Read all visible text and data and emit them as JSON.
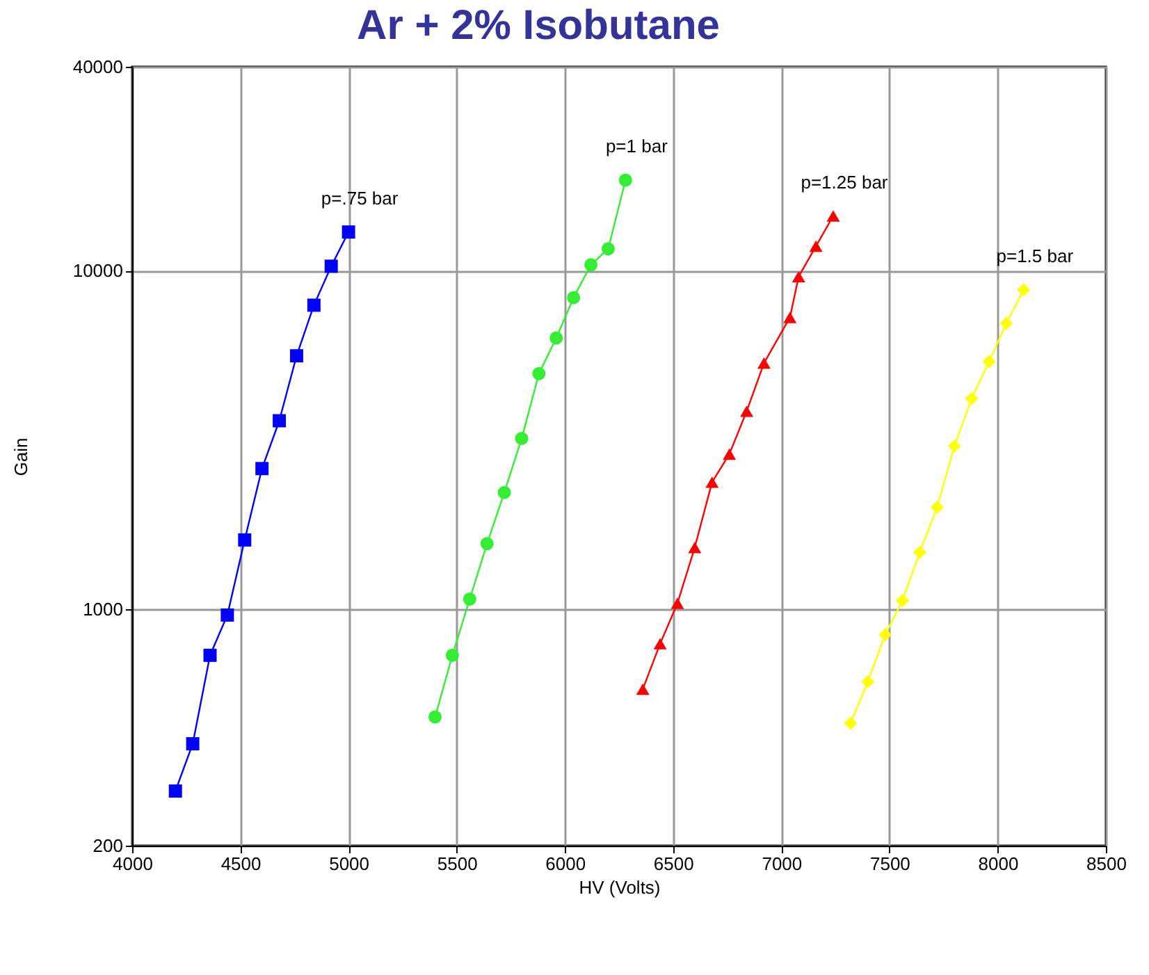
{
  "chart_data": {
    "type": "line",
    "title": "Ar + 2% Isobutane",
    "xlabel": "HV (Volts)",
    "ylabel": "Gain",
    "log": "y",
    "grid": true,
    "xlim": [
      4000,
      8500
    ],
    "xticks": [
      4000,
      4500,
      5000,
      5500,
      6000,
      6500,
      7000,
      7500,
      8000,
      8500
    ],
    "ylim": [
      200,
      40000
    ],
    "yticks": [
      200,
      1000,
      10000,
      40000
    ],
    "series": [
      {
        "name": "p=.75 bar",
        "color": "#0000ff",
        "marker": "square",
        "x": [
          4200,
          4280,
          4360,
          4440,
          4520,
          4600,
          4680,
          4760,
          4840,
          4920,
          5000
        ],
        "values": [
          290,
          400,
          730,
          960,
          1600,
          2600,
          3600,
          5600,
          7900,
          10300,
          13000
        ]
      },
      {
        "name": "p=1 bar",
        "color": "#33ee33",
        "marker": "circle",
        "x": [
          5400,
          5480,
          5560,
          5640,
          5720,
          5800,
          5880,
          5960,
          6040,
          6120,
          6200,
          6280
        ],
        "values": [
          480,
          730,
          1070,
          1560,
          2210,
          3190,
          4960,
          6320,
          8320,
          10400,
          11600,
          18500
        ]
      },
      {
        "name": "p=1.25 bar",
        "color": "#ff0000",
        "marker": "triangle",
        "x": [
          6360,
          6440,
          6520,
          6600,
          6680,
          6760,
          6840,
          6920,
          7040,
          7080,
          7160,
          7240
        ],
        "values": [
          580,
          790,
          1040,
          1520,
          2370,
          2870,
          3840,
          5330,
          7270,
          9590,
          11800,
          14500
        ]
      },
      {
        "name": "p=1.5 bar",
        "color": "#ffff00",
        "marker": "diamond",
        "x": [
          7320,
          7400,
          7480,
          7560,
          7640,
          7720,
          7800,
          7880,
          7960,
          8040,
          8120
        ],
        "values": [
          460,
          610,
          840,
          1060,
          1470,
          2000,
          3030,
          4190,
          5380,
          6980,
          8770
        ]
      }
    ]
  }
}
